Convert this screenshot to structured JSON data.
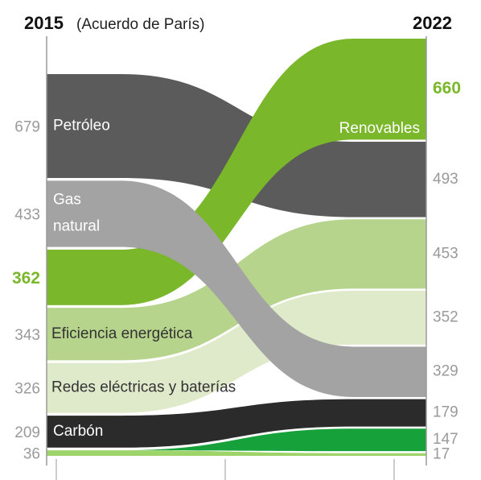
{
  "chart_data": {
    "type": "stream",
    "categories": [
      "2015",
      "2022"
    ],
    "annotation": "(Acuerdo de París)",
    "series": [
      {
        "name": "Petróleo",
        "color": "#5b5b5b",
        "values": [
          679,
          493
        ]
      },
      {
        "name": "Renovables",
        "color": "#7ab72a",
        "values": [
          362,
          660
        ],
        "highlight": true
      },
      {
        "name": "Eficiencia energética",
        "color": "#b6d48c",
        "values": [
          343,
          453
        ]
      },
      {
        "name": "Redes eléctricas y baterías",
        "color": "#dfeacb",
        "values": [
          326,
          352
        ]
      },
      {
        "name": "Gas natural",
        "color": "#a3a3a3",
        "values": [
          433,
          329
        ]
      },
      {
        "name": "Carbón",
        "color": "#2b2b2b",
        "values": [
          209,
          179
        ]
      },
      {
        "color": "#16a13a",
        "values": [
          null,
          147
        ]
      },
      {
        "color": "#9ed36a",
        "values": [
          36,
          17
        ]
      }
    ]
  }
}
